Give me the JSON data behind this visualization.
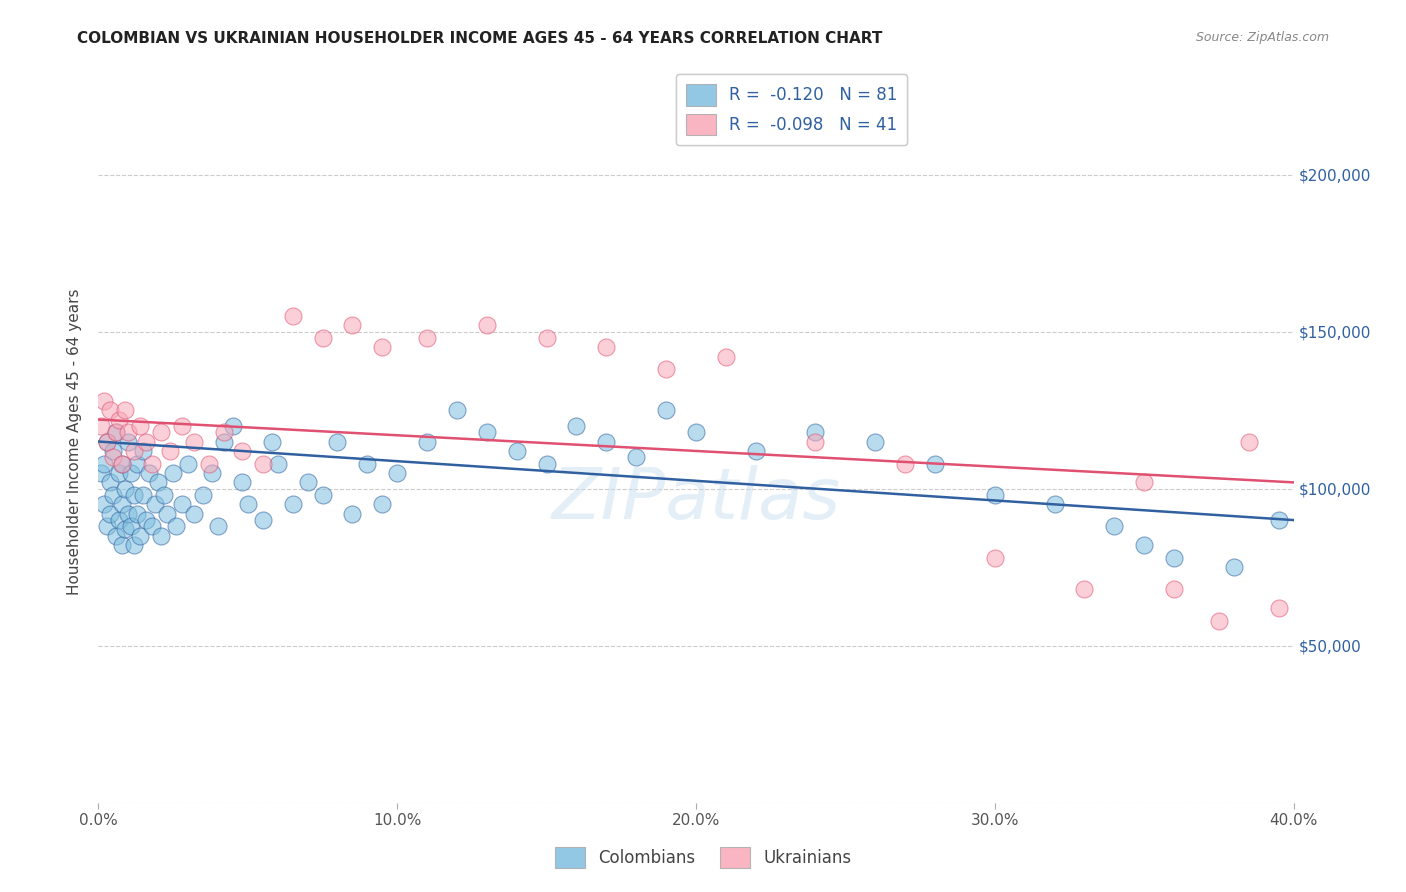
{
  "title": "COLOMBIAN VS UKRAINIAN HOUSEHOLDER INCOME AGES 45 - 64 YEARS CORRELATION CHART",
  "source": "Source: ZipAtlas.com",
  "ylabel": "Householder Income Ages 45 - 64 years",
  "xlim": [
    0.0,
    0.4
  ],
  "ylim": [
    0,
    230000
  ],
  "yticks": [
    0,
    50000,
    100000,
    150000,
    200000
  ],
  "ytick_labels": [
    "",
    "$50,000",
    "$100,000",
    "$150,000",
    "$200,000"
  ],
  "xticks": [
    0.0,
    0.1,
    0.2,
    0.3,
    0.4
  ],
  "xtick_labels": [
    "0.0%",
    "10.0%",
    "20.0%",
    "30.0%",
    "40.0%"
  ],
  "legend_labels": [
    "R =  -0.120   N = 81",
    "R =  -0.098   N = 41"
  ],
  "legend_bottom_labels": [
    "Colombians",
    "Ukrainians"
  ],
  "colombian_color": "#7fbfdf",
  "ukrainian_color": "#f9a8b8",
  "colombian_line_color": "#3060a0",
  "ukrainian_line_color": "#e05070",
  "background_color": "#ffffff",
  "watermark": "ZIPatlas",
  "colombian_x": [
    0.001,
    0.002,
    0.002,
    0.003,
    0.003,
    0.004,
    0.004,
    0.005,
    0.005,
    0.006,
    0.006,
    0.007,
    0.007,
    0.008,
    0.008,
    0.008,
    0.009,
    0.009,
    0.01,
    0.01,
    0.011,
    0.011,
    0.012,
    0.012,
    0.013,
    0.013,
    0.014,
    0.015,
    0.015,
    0.016,
    0.017,
    0.018,
    0.019,
    0.02,
    0.021,
    0.022,
    0.023,
    0.025,
    0.026,
    0.028,
    0.03,
    0.032,
    0.035,
    0.038,
    0.04,
    0.042,
    0.045,
    0.048,
    0.05,
    0.055,
    0.058,
    0.06,
    0.065,
    0.07,
    0.075,
    0.08,
    0.085,
    0.09,
    0.095,
    0.1,
    0.11,
    0.12,
    0.13,
    0.14,
    0.15,
    0.16,
    0.17,
    0.18,
    0.19,
    0.2,
    0.22,
    0.24,
    0.26,
    0.28,
    0.3,
    0.32,
    0.34,
    0.35,
    0.36,
    0.38,
    0.395
  ],
  "colombian_y": [
    105000,
    95000,
    108000,
    88000,
    115000,
    92000,
    102000,
    98000,
    112000,
    85000,
    118000,
    90000,
    105000,
    82000,
    95000,
    108000,
    87000,
    100000,
    92000,
    115000,
    88000,
    105000,
    82000,
    98000,
    92000,
    108000,
    85000,
    98000,
    112000,
    90000,
    105000,
    88000,
    95000,
    102000,
    85000,
    98000,
    92000,
    105000,
    88000,
    95000,
    108000,
    92000,
    98000,
    105000,
    88000,
    115000,
    120000,
    102000,
    95000,
    90000,
    115000,
    108000,
    95000,
    102000,
    98000,
    115000,
    92000,
    108000,
    95000,
    105000,
    115000,
    125000,
    118000,
    112000,
    108000,
    120000,
    115000,
    110000,
    125000,
    118000,
    112000,
    118000,
    115000,
    108000,
    98000,
    95000,
    88000,
    82000,
    78000,
    75000,
    90000
  ],
  "ukrainian_x": [
    0.001,
    0.002,
    0.003,
    0.004,
    0.005,
    0.006,
    0.007,
    0.008,
    0.009,
    0.01,
    0.012,
    0.014,
    0.016,
    0.018,
    0.021,
    0.024,
    0.028,
    0.032,
    0.037,
    0.042,
    0.048,
    0.055,
    0.065,
    0.075,
    0.085,
    0.095,
    0.11,
    0.13,
    0.15,
    0.17,
    0.19,
    0.21,
    0.24,
    0.27,
    0.3,
    0.33,
    0.35,
    0.36,
    0.375,
    0.385,
    0.395
  ],
  "ukrainian_y": [
    120000,
    128000,
    115000,
    125000,
    110000,
    118000,
    122000,
    108000,
    125000,
    118000,
    112000,
    120000,
    115000,
    108000,
    118000,
    112000,
    120000,
    115000,
    108000,
    118000,
    112000,
    108000,
    155000,
    148000,
    152000,
    145000,
    148000,
    152000,
    148000,
    145000,
    138000,
    142000,
    115000,
    108000,
    78000,
    68000,
    102000,
    68000,
    58000,
    115000,
    62000
  ]
}
